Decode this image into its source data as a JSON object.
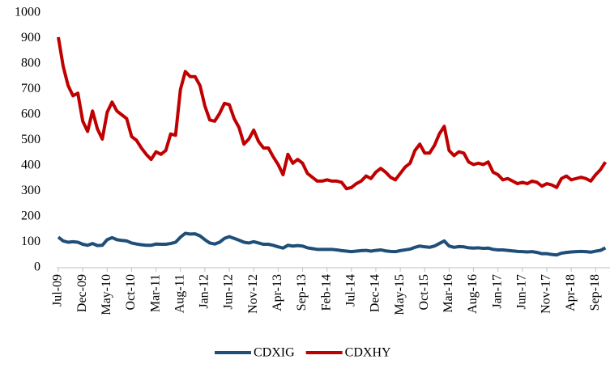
{
  "chart_data": {
    "type": "line",
    "categories": [
      "Jul-09",
      null,
      null,
      null,
      null,
      "Dec-09",
      null,
      null,
      null,
      null,
      "May-10",
      null,
      null,
      null,
      null,
      "Oct-10",
      null,
      null,
      null,
      null,
      "Mar-11",
      null,
      null,
      null,
      null,
      "Aug-11",
      null,
      null,
      null,
      null,
      "Jan-12",
      null,
      null,
      null,
      null,
      "Jun-12",
      null,
      null,
      null,
      null,
      "Nov-12",
      null,
      null,
      null,
      null,
      "Apr-13",
      null,
      null,
      null,
      null,
      "Sep-13",
      null,
      null,
      null,
      null,
      "Feb-14",
      null,
      null,
      null,
      null,
      "Jul-14",
      null,
      null,
      null,
      null,
      "Dec-14",
      null,
      null,
      null,
      null,
      "May-15",
      null,
      null,
      null,
      null,
      "Oct-15",
      null,
      null,
      null,
      null,
      "Mar-16",
      null,
      null,
      null,
      null,
      "Aug-16",
      null,
      null,
      null,
      null,
      "Jan-17",
      null,
      null,
      null,
      null,
      "Jun-17",
      null,
      null,
      null,
      null,
      "Nov-17",
      null,
      null,
      null,
      null,
      "Apr-18",
      null,
      null,
      null,
      null,
      "Sep-18",
      null,
      null
    ],
    "series": [
      {
        "name": "CDXIG",
        "color": "#1f4e79",
        "values": [
          120,
          105,
          100,
          102,
          100,
          92,
          88,
          95,
          87,
          88,
          110,
          118,
          110,
          107,
          105,
          97,
          93,
          90,
          88,
          88,
          93,
          92,
          92,
          95,
          100,
          120,
          135,
          132,
          133,
          125,
          110,
          97,
          93,
          100,
          115,
          122,
          115,
          108,
          100,
          97,
          102,
          97,
          92,
          92,
          88,
          82,
          77,
          88,
          85,
          87,
          85,
          78,
          75,
          72,
          72,
          72,
          72,
          70,
          67,
          65,
          63,
          65,
          67,
          68,
          65,
          68,
          70,
          66,
          64,
          63,
          67,
          70,
          73,
          80,
          85,
          82,
          80,
          85,
          95,
          105,
          85,
          80,
          83,
          82,
          78,
          77,
          78,
          76,
          77,
          72,
          70,
          70,
          68,
          66,
          64,
          63,
          62,
          63,
          60,
          55,
          55,
          52,
          50,
          57,
          60,
          62,
          63,
          64,
          63,
          61,
          65,
          68,
          78
        ]
      },
      {
        "name": "CDXHY",
        "color": "#c00000",
        "values": [
          905,
          790,
          715,
          675,
          685,
          575,
          535,
          615,
          545,
          505,
          610,
          650,
          615,
          600,
          585,
          515,
          500,
          470,
          445,
          425,
          455,
          445,
          460,
          525,
          520,
          700,
          770,
          750,
          750,
          715,
          635,
          580,
          575,
          605,
          645,
          640,
          585,
          550,
          485,
          505,
          540,
          495,
          470,
          470,
          435,
          405,
          365,
          445,
          410,
          425,
          410,
          370,
          355,
          340,
          340,
          345,
          340,
          340,
          335,
          310,
          315,
          330,
          340,
          360,
          350,
          375,
          390,
          375,
          355,
          345,
          370,
          395,
          410,
          460,
          485,
          450,
          450,
          480,
          525,
          555,
          460,
          440,
          455,
          450,
          415,
          405,
          410,
          405,
          415,
          375,
          365,
          345,
          350,
          340,
          330,
          335,
          330,
          340,
          335,
          320,
          330,
          325,
          315,
          350,
          360,
          345,
          350,
          355,
          350,
          340,
          365,
          385,
          415
        ]
      }
    ],
    "ylim": [
      0,
      1000
    ],
    "yticks": [
      0,
      100,
      200,
      300,
      400,
      500,
      600,
      700,
      800,
      900,
      1000
    ],
    "grid": false,
    "legend": "bottom"
  }
}
